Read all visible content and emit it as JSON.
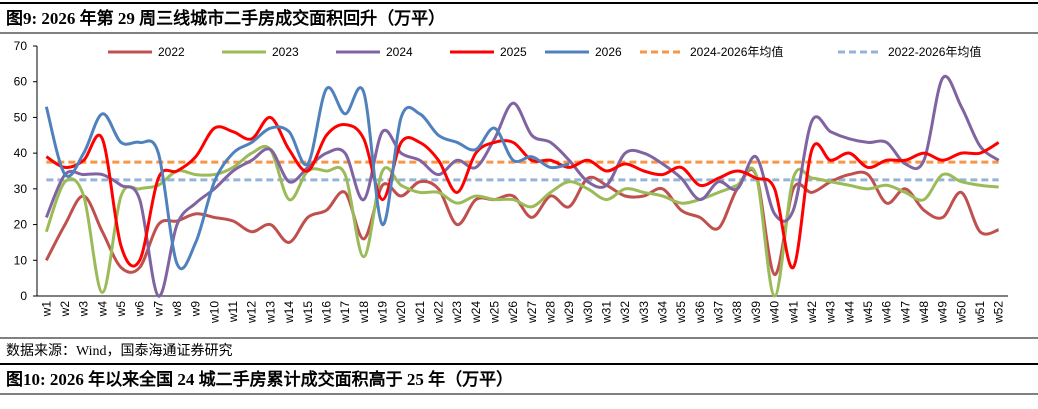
{
  "chart_data": {
    "type": "line",
    "title": "图9:  2026 年第 29 周三线城市二手房成交面积回升（万平）",
    "source": "数据来源：Wind，国泰海通证券研究",
    "next_title": "图10:  2026 年以来全国 24 城二手房累计成交面积高于 25 年（万平）",
    "categories": [
      "w1",
      "w2",
      "w3",
      "w4",
      "w5",
      "w6",
      "w7",
      "w8",
      "w9",
      "w10",
      "w11",
      "w12",
      "w13",
      "w14",
      "w15",
      "w16",
      "w17",
      "w18",
      "w19",
      "w20",
      "w21",
      "w22",
      "w23",
      "w24",
      "w25",
      "w26",
      "w27",
      "w28",
      "w29",
      "w30",
      "w31",
      "w32",
      "w33",
      "w34",
      "w35",
      "w36",
      "w37",
      "w38",
      "w39",
      "w40",
      "w41",
      "w42",
      "w43",
      "w44",
      "w45",
      "w46",
      "w47",
      "w48",
      "w49",
      "w50",
      "w51",
      "w52"
    ],
    "series": [
      {
        "name": "2022",
        "color": "#c0504d",
        "values": [
          10,
          20,
          28,
          18,
          8,
          8,
          20,
          21,
          23,
          22,
          21,
          18,
          20,
          15,
          22,
          24,
          29,
          16,
          31,
          28,
          32,
          30,
          20,
          27,
          27,
          28,
          22,
          28,
          25,
          33,
          31,
          28,
          28,
          30,
          24,
          22,
          19,
          30,
          34,
          6,
          30,
          29,
          32,
          34,
          34,
          26,
          30,
          24,
          22,
          29,
          18,
          18.5
        ]
      },
      {
        "name": "2023",
        "color": "#9bbb59",
        "values": [
          18,
          32,
          28,
          1,
          28,
          30,
          31,
          35,
          34,
          34,
          36,
          40,
          41,
          27,
          35,
          35,
          34,
          11,
          35,
          31,
          29,
          29,
          26,
          28,
          27,
          27,
          25,
          29,
          32,
          30,
          27,
          30,
          29,
          28,
          26,
          27,
          29,
          31,
          34,
          0,
          33,
          33,
          32,
          31,
          30,
          31,
          29,
          27,
          34,
          32,
          31,
          30.5
        ]
      },
      {
        "name": "2024",
        "color": "#8064a2",
        "values": [
          22,
          34,
          34,
          34,
          31,
          27,
          0,
          20,
          26,
          30,
          35,
          38,
          41,
          32,
          36,
          40,
          40,
          27,
          46,
          40,
          38,
          34,
          38,
          36,
          44,
          54,
          45,
          43,
          38,
          32,
          31,
          40,
          40,
          37,
          33,
          27,
          32,
          30,
          39,
          23,
          24,
          49,
          46,
          44,
          43,
          43,
          37,
          38,
          61,
          53,
          42,
          38
        ]
      },
      {
        "name": "2025",
        "color": "#ff0000",
        "values": [
          39,
          36,
          38,
          44,
          14,
          10,
          33,
          35,
          39,
          47,
          46,
          44,
          50,
          41,
          35,
          45,
          48,
          44,
          27,
          43,
          43,
          38,
          29,
          40,
          43,
          43,
          38,
          38,
          36,
          38,
          35,
          37,
          35,
          34,
          36,
          31,
          33,
          35,
          33,
          30,
          8,
          41,
          38,
          40,
          36,
          38,
          38,
          40,
          38,
          40,
          40,
          43
        ]
      },
      {
        "name": "2026",
        "color": "#4f81bd",
        "values": [
          53,
          34,
          40,
          51,
          43,
          43,
          40,
          9,
          15,
          32,
          40,
          43,
          47,
          46,
          37,
          58,
          51,
          57,
          20,
          50,
          51,
          45,
          43,
          41,
          47,
          38,
          39,
          36,
          37,
          null,
          null,
          null,
          null,
          null,
          null,
          null,
          null,
          null,
          null,
          null,
          null,
          null,
          null,
          null,
          null,
          null,
          null,
          null,
          null,
          null,
          null,
          null
        ]
      }
    ],
    "average_lines": [
      {
        "name": "2024-2026年均值",
        "color": "#f79646",
        "value": 37.5
      },
      {
        "name": "2022-2026年均值",
        "color": "#95b3d7",
        "value": 32.5
      }
    ],
    "ylim": [
      0,
      70
    ],
    "yticks": [
      0,
      10,
      20,
      30,
      40,
      50,
      60,
      70
    ]
  }
}
